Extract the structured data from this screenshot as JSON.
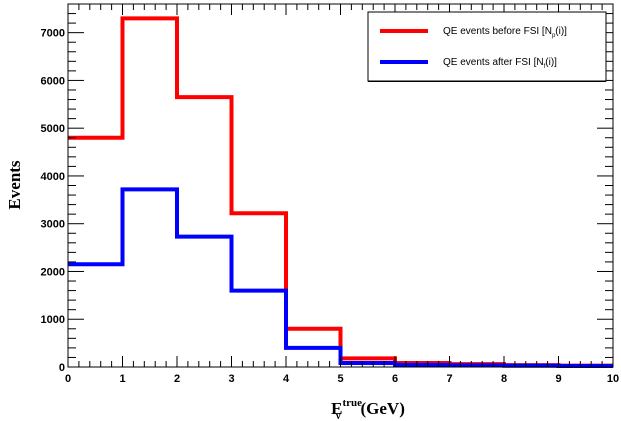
{
  "chart_data": {
    "type": "step",
    "x_edges": [
      0,
      1,
      2,
      3,
      4,
      5,
      6,
      7,
      8,
      9,
      10
    ],
    "xlim": [
      0,
      10
    ],
    "ylim": [
      0,
      7600
    ],
    "x_ticks": [
      "0",
      "1",
      "2",
      "3",
      "4",
      "5",
      "6",
      "7",
      "8",
      "9",
      "10"
    ],
    "y_ticks": [
      "0",
      "1000",
      "2000",
      "3000",
      "4000",
      "5000",
      "6000",
      "7000"
    ],
    "xlabel": {
      "main": "E",
      "sub": "ν",
      "sup": "true",
      "unit": "(GeV)"
    },
    "ylabel": "Events",
    "legend_position": "top-right",
    "series": [
      {
        "name": {
          "before": "QE events before FSI [N",
          "sub": "p",
          "after": "(i)]"
        },
        "color": "#ff0000",
        "values": [
          4800,
          7300,
          5650,
          3220,
          800,
          180,
          85,
          60,
          40,
          30
        ]
      },
      {
        "name": {
          "before": "QE events after FSI [N",
          "sub": "f",
          "after": "(i)]"
        },
        "color": "#0000ff",
        "values": [
          2150,
          3720,
          2730,
          1600,
          400,
          85,
          45,
          35,
          25,
          20
        ]
      }
    ]
  }
}
